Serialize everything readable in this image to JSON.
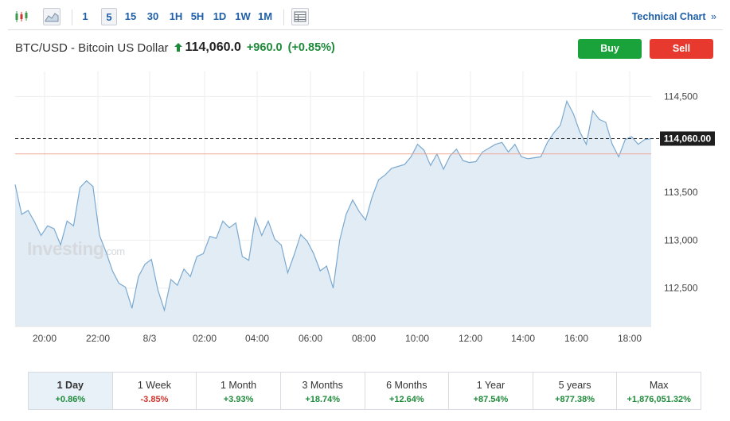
{
  "toolbar": {
    "chart_type_icons": [
      "candlestick-icon",
      "area-chart-icon"
    ],
    "timeframes": [
      "1",
      "5",
      "15",
      "30",
      "1H",
      "5H",
      "1D",
      "1W",
      "1M"
    ],
    "active_timeframe": "5",
    "table_icon": "table-icon",
    "technical_chart_label": "Technical Chart",
    "technical_chart_icon": "double-chevron-right-icon"
  },
  "header": {
    "pair": "BTC/USD - Bitcoin US Dollar",
    "direction_icon": "up-arrow-icon",
    "price": "114,060.0",
    "change": "+960.0",
    "change_pct": "(+0.85%)",
    "buy_label": "Buy",
    "sell_label": "Sell",
    "colors": {
      "buy": "#1aa33a",
      "sell": "#e8392f",
      "positive": "#1e8a3a",
      "negative": "#d0342c"
    }
  },
  "watermark": {
    "brand": "Investing",
    "suffix": ".com"
  },
  "chart_data": {
    "type": "area",
    "title": "",
    "xlabel": "",
    "ylabel": "",
    "x_ticks": [
      "20:00",
      "22:00",
      "8/3",
      "02:00",
      "04:00",
      "06:00",
      "08:00",
      "10:00",
      "12:00",
      "14:00",
      "16:00",
      "18:00"
    ],
    "y_ticks": [
      112500,
      113000,
      113500,
      114500
    ],
    "y_tick_labels": [
      "112,500",
      "113,000",
      "113,500",
      "114,500"
    ],
    "ylim": [
      112100,
      114760
    ],
    "current_price": 114060,
    "current_price_label": "114,060.00",
    "reference_level": 113900,
    "series": [
      {
        "values": [
          113580,
          113270,
          113310,
          113190,
          113050,
          113150,
          113120,
          112950,
          113200,
          113150,
          113550,
          113620,
          113560,
          113050,
          112880,
          112680,
          112550,
          112510,
          112290,
          112620,
          112750,
          112800,
          112480,
          112270,
          112590,
          112530,
          112700,
          112620,
          112830,
          112860,
          113040,
          113020,
          113200,
          113130,
          113180,
          112830,
          112790,
          113230,
          113050,
          113200,
          113010,
          112950,
          112660,
          112850,
          113060,
          112990,
          112860,
          112680,
          112730,
          112500,
          113000,
          113270,
          113420,
          113300,
          113210,
          113450,
          113630,
          113680,
          113750,
          113770,
          113790,
          113870,
          114000,
          113940,
          113780,
          113900,
          113740,
          113880,
          113950,
          113830,
          113810,
          113820,
          113920,
          113960,
          114000,
          114020,
          113920,
          114000,
          113870,
          113850,
          113860,
          113870,
          114020,
          114120,
          114200,
          114450,
          114320,
          114130,
          114000,
          114350,
          114260,
          114230,
          114000,
          113870,
          114050,
          114080,
          114000,
          114050,
          114060
        ]
      }
    ],
    "colors": {
      "line": "#7aa9d0",
      "fill": "#e2ecf5",
      "reference": "#f0a89c",
      "current_tag": "#1e1e1e"
    }
  },
  "performance": [
    {
      "label": "1 Day",
      "value": "+0.86%",
      "sign": "pos",
      "active": true
    },
    {
      "label": "1 Week",
      "value": "-3.85%",
      "sign": "neg",
      "active": false
    },
    {
      "label": "1 Month",
      "value": "+3.93%",
      "sign": "pos",
      "active": false
    },
    {
      "label": "3 Months",
      "value": "+18.74%",
      "sign": "pos",
      "active": false
    },
    {
      "label": "6 Months",
      "value": "+12.64%",
      "sign": "pos",
      "active": false
    },
    {
      "label": "1 Year",
      "value": "+87.54%",
      "sign": "pos",
      "active": false
    },
    {
      "label": "5 years",
      "value": "+877.38%",
      "sign": "pos",
      "active": false
    },
    {
      "label": "Max",
      "value": "+1,876,051.32%",
      "sign": "pos",
      "active": false
    }
  ]
}
